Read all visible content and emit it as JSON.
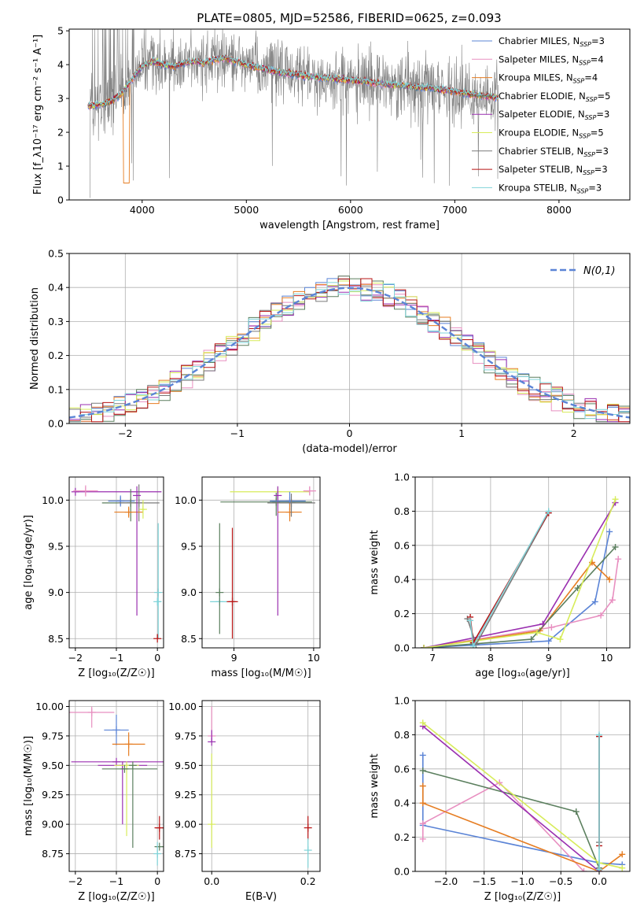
{
  "figure_title": "PLATE=0805, MJD=52586, FIBERID=0625, z=0.093",
  "colors": {
    "chabrier_miles": "#5b84d6",
    "salpeter_miles": "#e88fc0",
    "kroupa_miles": "#e67d22",
    "chabrier_elodie": "#5b7f5e",
    "salpeter_elodie": "#9a2fb0",
    "kroupa_elodie": "#d7ec5a",
    "chabrier_stelib": "#7a7a7a",
    "salpeter_stelib": "#b81414",
    "kroupa_stelib": "#7fd3d8",
    "gaussian": "#5b84d6",
    "grid": "#b0b0b0"
  },
  "chart_data": [
    {
      "id": "spectrum",
      "type": "line",
      "xlabel": "wavelength [Angstrom, rest frame]",
      "ylabel": "Flux [f_λ10⁻¹⁷ erg cm⁻² s⁻¹ A⁻¹]",
      "xlim": [
        3300,
        8680
      ],
      "ylim": [
        0,
        5.05
      ],
      "xticks": [
        4000,
        5000,
        6000,
        7000,
        8000
      ],
      "yticks": [
        0,
        1,
        2,
        3,
        4,
        5
      ],
      "grid": false,
      "legend_position": "right",
      "observed": {
        "name": "data",
        "color": "#808080",
        "x_range": [
          3500,
          7420
        ],
        "level": 3.7,
        "noise": 0.9
      },
      "series": [
        {
          "name": "Chabrier MILES, N_SSP=3",
          "color": "#5b84d6"
        },
        {
          "name": "Salpeter MILES, N_SSP=4",
          "color": "#e88fc0"
        },
        {
          "name": "Kroupa MILES, N_SSP=4",
          "color": "#e67d22"
        },
        {
          "name": "Chabrier ELODIE, N_SSP=5",
          "color": "#5b7f5e"
        },
        {
          "name": "Salpeter ELODIE, N_SSP=3",
          "color": "#9a2fb0"
        },
        {
          "name": "Kroupa ELODIE, N_SSP=5",
          "color": "#d7ec5a"
        },
        {
          "name": "Chabrier STELIB, N_SSP=3",
          "color": "#7a7a7a"
        },
        {
          "name": "Salpeter STELIB, N_SSP=3",
          "color": "#b81414"
        },
        {
          "name": "Kroupa STELIB, N_SSP=3",
          "color": "#7fd3d8"
        }
      ],
      "model_shape": {
        "x": [
          3500,
          3600,
          3700,
          3800,
          3900,
          4000,
          4100,
          4200,
          4300,
          4400,
          4500,
          4600,
          4700,
          4800,
          4900,
          5000,
          5200,
          5400,
          5600,
          5800,
          6000,
          6200,
          6400,
          6600,
          6800,
          7000,
          7200,
          7420
        ],
        "y": [
          2.78,
          2.82,
          2.9,
          3.15,
          3.55,
          3.95,
          4.1,
          4.0,
          3.95,
          4.05,
          4.1,
          4.05,
          4.15,
          4.2,
          4.1,
          4.0,
          3.85,
          3.75,
          3.65,
          3.6,
          3.55,
          3.48,
          3.4,
          3.35,
          3.3,
          3.2,
          3.1,
          3.02
        ]
      }
    },
    {
      "id": "residuals",
      "type": "histogram",
      "xlabel": "(data-model)/error",
      "ylabel": "Normed distribution",
      "xlim": [
        -2.5,
        2.5
      ],
      "ylim": [
        0,
        0.5
      ],
      "xticks": [
        -2,
        -1,
        0,
        1,
        2
      ],
      "yticks": [
        0.0,
        0.1,
        0.2,
        0.3,
        0.4,
        0.5
      ],
      "grid": true,
      "legend": "N(0,1)",
      "legend_position": "top-right",
      "bin_width": 0.1,
      "bin_start": -2.5
    },
    {
      "id": "age_vs_Z",
      "type": "scatter",
      "xlabel": "Z [log₁₀(Z/Z☉)]",
      "ylabel": "age  [log₁₀(age/yr)]",
      "xlim": [
        -2.15,
        0.15
      ],
      "ylim": [
        8.4,
        10.25
      ],
      "xticks": [
        -2,
        -1,
        0
      ],
      "yticks": [
        8.5,
        9.0,
        9.5,
        10.0
      ],
      "grid": true,
      "points": [
        {
          "x": -2.0,
          "y": 10.09,
          "xerr": [
            0.0,
            2.1
          ],
          "yerr": [
            0.0,
            0.0
          ],
          "color": "#9a2fb0"
        },
        {
          "x": -1.75,
          "y": 10.1,
          "xerr": [
            0.3,
            0.3
          ],
          "yerr": [
            0.06,
            0.06
          ],
          "color": "#e88fc0"
        },
        {
          "x": -0.9,
          "y": 9.99,
          "xerr": [
            0.3,
            0.35
          ],
          "yerr": [
            0.06,
            0.06
          ],
          "color": "#5b84d6"
        },
        {
          "x": -0.65,
          "y": 9.97,
          "xerr": [
            0.7,
            0.2
          ],
          "yerr": [
            0.2,
            0.15
          ],
          "color": "#5b7f5e"
        },
        {
          "x": -0.45,
          "y": 9.97,
          "xerr": [
            0.5,
            0.5
          ],
          "yerr": [
            0.2,
            0.2
          ],
          "color": "#7a7a7a"
        },
        {
          "x": -0.7,
          "y": 9.87,
          "xerr": [
            0.35,
            0.35
          ],
          "yerr": [
            0.06,
            0.06
          ],
          "color": "#e67d22"
        },
        {
          "x": -0.5,
          "y": 10.05,
          "xerr": [
            0.0,
            0.0
          ],
          "yerr": [
            1.3,
            0.1
          ],
          "color": "#9a2fb0"
        },
        {
          "x": -0.35,
          "y": 9.9,
          "xerr": [
            0.05,
            0.05
          ],
          "yerr": [
            0.1,
            0.1
          ],
          "color": "#d7ec5a"
        },
        {
          "x": 0.0,
          "y": 8.9,
          "xerr": [
            0.0,
            0.1
          ],
          "yerr": [
            0.0,
            0.0
          ],
          "color": "#7fd3d8"
        },
        {
          "x": 0.02,
          "y": 9.0,
          "xerr": [
            0.0,
            0.0
          ],
          "yerr": [
            0.5,
            0.75
          ],
          "color": "#7fd3d8"
        },
        {
          "x": 0.0,
          "y": 8.5,
          "xerr": [
            0.0,
            0.0
          ],
          "yerr": [
            0.0,
            0.05
          ],
          "color": "#b81414"
        }
      ]
    },
    {
      "id": "age_vs_mass",
      "type": "scatter",
      "xlabel": "mass [log₁₀(M/M☉)]",
      "ylabel": "",
      "xlim": [
        8.6,
        10.08
      ],
      "ylim": [
        8.4,
        10.25
      ],
      "xticks": [
        9,
        10
      ],
      "yticks": [
        8.5,
        9.0,
        9.5,
        10.0
      ],
      "grid": true,
      "points": [
        {
          "x": 8.82,
          "y": 8.9,
          "xerr": [
            0.12,
            0.1
          ],
          "yerr": [
            0.0,
            0.0
          ],
          "color": "#7fd3d8"
        },
        {
          "x": 8.82,
          "y": 9.0,
          "xerr": [
            0.0,
            0.0
          ],
          "yerr": [
            0.45,
            0.75
          ],
          "color": "#5b7f5e"
        },
        {
          "x": 8.98,
          "y": 8.9,
          "xerr": [
            0.07,
            0.07
          ],
          "yerr": [
            0.4,
            0.8
          ],
          "color": "#b81414"
        },
        {
          "x": 9.55,
          "y": 10.09,
          "xerr": [
            0.6,
            0.4
          ],
          "yerr": [
            0.0,
            0.0
          ],
          "color": "#d7ec5a"
        },
        {
          "x": 9.53,
          "y": 9.98,
          "xerr": [
            0.7,
            0.45
          ],
          "yerr": [
            0.15,
            0.1
          ],
          "color": "#5b7f5e"
        },
        {
          "x": 9.55,
          "y": 10.05,
          "xerr": [
            0.0,
            0.0
          ],
          "yerr": [
            1.3,
            0.1
          ],
          "color": "#9a2fb0"
        },
        {
          "x": 9.7,
          "y": 9.99,
          "xerr": [
            0.25,
            0.2
          ],
          "yerr": [
            0.1,
            0.1
          ],
          "color": "#5b84d6"
        },
        {
          "x": 9.7,
          "y": 9.87,
          "xerr": [
            0.15,
            0.15
          ],
          "yerr": [
            0.1,
            0.1
          ],
          "color": "#e67d22"
        },
        {
          "x": 9.72,
          "y": 9.97,
          "xerr": [
            0.3,
            0.3
          ],
          "yerr": [
            0.15,
            0.1
          ],
          "color": "#7a7a7a"
        },
        {
          "x": 9.95,
          "y": 10.1,
          "xerr": [
            0.08,
            0.08
          ],
          "yerr": [
            0.05,
            0.05
          ],
          "color": "#e88fc0"
        }
      ]
    },
    {
      "id": "weight_vs_age",
      "type": "line",
      "xlabel": "age  [log₁₀(age/yr)]",
      "ylabel": "mass weight",
      "xlim": [
        6.7,
        10.4
      ],
      "ylim": [
        0,
        1.0
      ],
      "xticks": [
        7,
        8,
        9,
        10
      ],
      "yticks": [
        0.0,
        0.2,
        0.4,
        0.6,
        0.8,
        1.0
      ],
      "grid": true,
      "series": [
        {
          "color": "#5b84d6",
          "x": [
            6.85,
            9.0,
            9.8,
            10.05
          ],
          "y": [
            0.0,
            0.04,
            0.27,
            0.68
          ]
        },
        {
          "color": "#e88fc0",
          "x": [
            6.85,
            9.05,
            9.9,
            10.1,
            10.2
          ],
          "y": [
            0.0,
            0.12,
            0.19,
            0.28,
            0.52
          ]
        },
        {
          "color": "#e67d22",
          "x": [
            6.85,
            8.85,
            9.75,
            10.05
          ],
          "y": [
            0.0,
            0.1,
            0.5,
            0.4
          ]
        },
        {
          "color": "#5b7f5e",
          "x": [
            6.85,
            8.7,
            9.5,
            10.15
          ],
          "y": [
            0.0,
            0.05,
            0.35,
            0.59
          ]
        },
        {
          "color": "#9a2fb0",
          "x": [
            6.85,
            8.9,
            10.15
          ],
          "y": [
            0.0,
            0.14,
            0.85
          ]
        },
        {
          "color": "#d7ec5a",
          "x": [
            6.85,
            8.8,
            9.2,
            10.15
          ],
          "y": [
            0.0,
            0.09,
            0.05,
            0.87
          ]
        },
        {
          "color": "#7a7a7a",
          "x": [
            7.6,
            7.75,
            9.0
          ],
          "y": [
            0.17,
            0.02,
            0.79
          ]
        },
        {
          "color": "#b81414",
          "x": [
            7.65,
            7.7,
            9.0
          ],
          "y": [
            0.18,
            0.03,
            0.79
          ]
        },
        {
          "color": "#7fd3d8",
          "x": [
            7.65,
            7.7,
            9.0
          ],
          "y": [
            0.16,
            0.01,
            0.8
          ]
        }
      ]
    },
    {
      "id": "mass_vs_Z",
      "type": "scatter",
      "xlabel": "Z [log₁₀(Z/Z☉)]",
      "ylabel": "mass [log₁₀(M/M☉)]",
      "xlim": [
        -2.15,
        0.15
      ],
      "ylim": [
        8.6,
        10.05
      ],
      "xticks": [
        -2,
        -1,
        0
      ],
      "yticks": [
        8.75,
        9.0,
        9.25,
        9.5,
        9.75,
        10.0
      ],
      "grid": true,
      "points": [
        {
          "x": -1.6,
          "y": 9.95,
          "xerr": [
            0.55,
            0.55
          ],
          "yerr": [
            0.13,
            0.05
          ],
          "color": "#e88fc0"
        },
        {
          "x": -1.0,
          "y": 9.8,
          "xerr": [
            0.3,
            0.3
          ],
          "yerr": [
            0.13,
            0.13
          ],
          "color": "#5b84d6"
        },
        {
          "x": -0.7,
          "y": 9.68,
          "xerr": [
            0.4,
            0.4
          ],
          "yerr": [
            0.1,
            0.1
          ],
          "color": "#e67d22"
        },
        {
          "x": -1.0,
          "y": 9.53,
          "xerr": [
            1.1,
            1.2
          ],
          "yerr": [
            0.0,
            0.0
          ],
          "color": "#9a2fb0"
        },
        {
          "x": -0.85,
          "y": 9.5,
          "xerr": [
            0.6,
            0.6
          ],
          "yerr": [
            0.5,
            0.0
          ],
          "color": "#9a2fb0"
        },
        {
          "x": -0.75,
          "y": 9.5,
          "xerr": [
            0.3,
            0.3
          ],
          "yerr": [
            0.6,
            0.0
          ],
          "color": "#d7ec5a"
        },
        {
          "x": -0.8,
          "y": 9.47,
          "xerr": [
            0.55,
            0.8
          ],
          "yerr": [
            0.0,
            0.0
          ],
          "color": "#5b7f5e"
        },
        {
          "x": -0.6,
          "y": 9.5,
          "xerr": [
            0.0,
            0.0
          ],
          "yerr": [
            0.7,
            0.0
          ],
          "color": "#5b7f5e"
        },
        {
          "x": 0.05,
          "y": 8.97,
          "xerr": [
            0.12,
            0.1
          ],
          "yerr": [
            0.1,
            0.1
          ],
          "color": "#b81414"
        },
        {
          "x": 0.05,
          "y": 8.81,
          "xerr": [
            0.12,
            0.1
          ],
          "yerr": [
            0.0,
            0.0
          ],
          "color": "#5b7f5e"
        },
        {
          "x": 0.0,
          "y": 8.75,
          "xerr": [
            0.0,
            0.0
          ],
          "yerr": [
            0.1,
            0.1
          ],
          "color": "#7fd3d8"
        }
      ]
    },
    {
      "id": "mass_vs_EBV",
      "type": "scatter",
      "xlabel": "E(B-V)",
      "ylabel": "",
      "xlim": [
        -0.02,
        0.225
      ],
      "ylim": [
        8.6,
        10.05
      ],
      "xticks": [
        0.0,
        0.2
      ],
      "yticks": [
        8.75,
        9.0,
        9.25,
        9.5,
        9.75,
        10.0
      ],
      "grid": true,
      "points": [
        {
          "x": 0.0,
          "y": 9.75,
          "xerr": [
            0.0,
            0.0
          ],
          "yerr": [
            0.05,
            0.25
          ],
          "color": "#e88fc0"
        },
        {
          "x": 0.0,
          "y": 9.7,
          "xerr": [
            0.0,
            0.0
          ],
          "yerr": [
            0.0,
            0.1
          ],
          "color": "#9a2fb0"
        },
        {
          "x": 0.0,
          "y": 9.0,
          "xerr": [
            0.0,
            0.0
          ],
          "yerr": [
            0.2,
            0.6
          ],
          "color": "#d7ec5a"
        },
        {
          "x": 0.2,
          "y": 8.97,
          "xerr": [
            0.0,
            0.0
          ],
          "yerr": [
            0.1,
            0.1
          ],
          "color": "#b81414"
        },
        {
          "x": 0.2,
          "y": 8.78,
          "xerr": [
            0.0,
            0.0
          ],
          "yerr": [
            0.15,
            0.1
          ],
          "color": "#7fd3d8"
        }
      ]
    },
    {
      "id": "weight_vs_Z",
      "type": "line",
      "xlabel": "Z [log₁₀(Z/Z☉)]",
      "ylabel": "mass weight",
      "xlim": [
        -2.4,
        0.4
      ],
      "ylim": [
        0,
        1.0
      ],
      "xticks": [
        -2.0,
        -1.5,
        -1.0,
        -0.5,
        0.0
      ],
      "yticks": [
        0.0,
        0.2,
        0.4,
        0.6,
        0.8,
        1.0
      ],
      "grid": true,
      "series": [
        {
          "color": "#5b84d6",
          "x": [
            -2.3,
            -2.3,
            0.0,
            0.3
          ],
          "y": [
            0.68,
            0.27,
            0.05,
            0.04
          ]
        },
        {
          "color": "#e88fc0",
          "x": [
            -2.3,
            -2.3,
            -1.3,
            -0.2
          ],
          "y": [
            0.19,
            0.28,
            0.52,
            0.0
          ]
        },
        {
          "color": "#e67d22",
          "x": [
            -2.3,
            -2.3,
            0.0,
            0.3
          ],
          "y": [
            0.5,
            0.4,
            0.0,
            0.1
          ]
        },
        {
          "color": "#5b7f5e",
          "x": [
            -2.3,
            -0.3,
            0.0
          ],
          "y": [
            0.59,
            0.35,
            0.02
          ]
        },
        {
          "color": "#9a2fb0",
          "x": [
            -2.3,
            0.0
          ],
          "y": [
            0.85,
            0.0
          ]
        },
        {
          "color": "#d7ec5a",
          "x": [
            -2.3,
            0.0,
            0.3
          ],
          "y": [
            0.87,
            0.05,
            0.02
          ]
        },
        {
          "color": "#7a7a7a",
          "x": [
            0.0,
            0.0
          ],
          "y": [
            0.79,
            0.17
          ]
        },
        {
          "color": "#b81414",
          "x": [
            0.0,
            0.0
          ],
          "y": [
            0.79,
            0.15
          ]
        },
        {
          "color": "#7fd3d8",
          "x": [
            0.0,
            0.0
          ],
          "y": [
            0.8,
            0.01
          ]
        }
      ]
    }
  ]
}
